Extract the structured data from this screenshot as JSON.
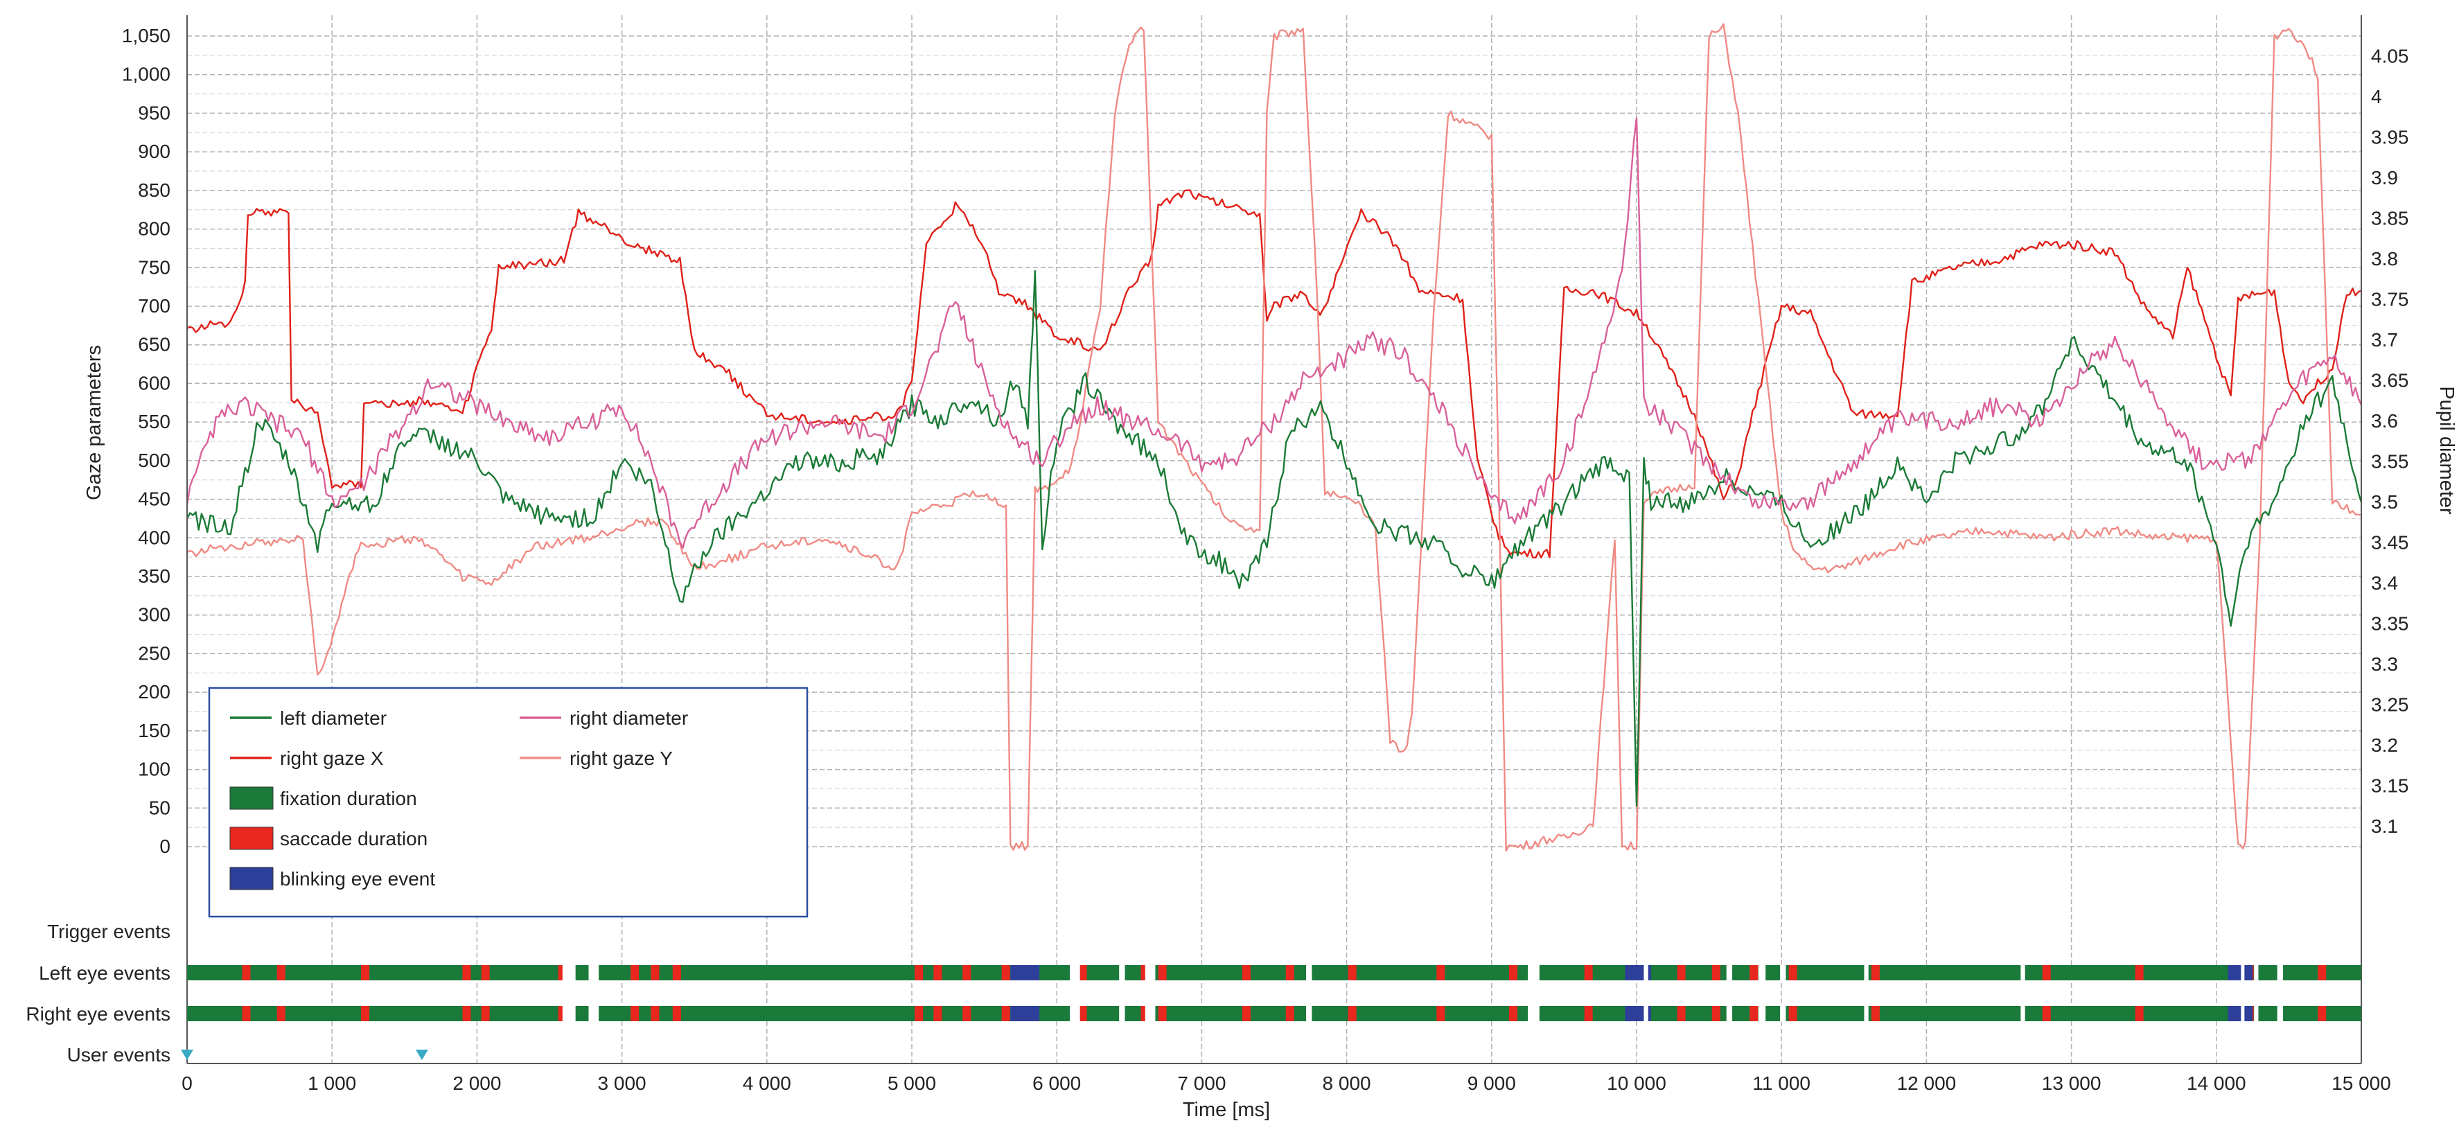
{
  "chart_data": {
    "type": "line",
    "xlabel": "Time [ms]",
    "ylabel_left": "Gaze parameters",
    "ylabel_right": "Pupil diameter",
    "xlim": [
      0,
      15000
    ],
    "ylim_left": [
      0,
      1050
    ],
    "ylim_right": [
      3.075,
      4.075
    ],
    "x_ticks": [
      "0",
      "1 000",
      "2 000",
      "3 000",
      "4 000",
      "5 000",
      "6 000",
      "7 000",
      "8 000",
      "9 000",
      "10 000",
      "11 000",
      "12 000",
      "13 000",
      "14 000",
      "15 000"
    ],
    "left_ticks": [
      "0",
      "50",
      "100",
      "150",
      "200",
      "250",
      "300",
      "350",
      "400",
      "450",
      "500",
      "550",
      "600",
      "650",
      "700",
      "750",
      "800",
      "850",
      "900",
      "950",
      "1,000",
      "1,050"
    ],
    "right_ticks": [
      "3.1",
      "3.15",
      "3.2",
      "3.25",
      "3.3",
      "3.35",
      "3.4",
      "3.45",
      "3.5",
      "3.55",
      "3.6",
      "3.65",
      "3.7",
      "3.75",
      "3.8",
      "3.85",
      "3.9",
      "3.95",
      "4",
      "4.05"
    ],
    "grid": true,
    "legend_position": "bottom-left",
    "colors": {
      "left_diameter": "#1a7a36",
      "right_diameter": "#d9609a",
      "right_gaze_x": "#e02018",
      "right_gaze_y": "#f08a84",
      "fixation": "#1a7a3a",
      "saccade": "#e8281e",
      "blink": "#2e3f9a",
      "user_marker": "#39a9c4",
      "legend_border": "#2b4fa0",
      "grid": "#b0b0b0"
    },
    "legend": [
      {
        "label": "left diameter",
        "kind": "line",
        "color_key": "left_diameter"
      },
      {
        "label": "right diameter",
        "kind": "line",
        "color_key": "right_diameter"
      },
      {
        "label": "right gaze X",
        "kind": "line",
        "color_key": "right_gaze_x"
      },
      {
        "label": "right gaze Y",
        "kind": "line",
        "color_key": "right_gaze_y"
      },
      {
        "label": "fixation duration",
        "kind": "box",
        "color_key": "fixation"
      },
      {
        "label": "saccade duration",
        "kind": "box",
        "color_key": "saccade"
      },
      {
        "label": "blinking eye event",
        "kind": "box",
        "color_key": "blink"
      }
    ],
    "series": [
      {
        "name": "right gaze X",
        "axis": "left",
        "color_key": "right_gaze_x",
        "x": [
          0,
          300,
          400,
          420,
          700,
          720,
          900,
          1000,
          1200,
          1220,
          1500,
          1600,
          1900,
          2000,
          2100,
          2150,
          2600,
          2700,
          3000,
          3050,
          3400,
          3500,
          3700,
          4000,
          4500,
          4900,
          5000,
          5100,
          5300,
          5500,
          5600,
          5800,
          5900,
          6000,
          6200,
          6300,
          6400,
          6500,
          6650,
          6700,
          6900,
          7000,
          7400,
          7450,
          7500,
          7700,
          7800,
          7850,
          8100,
          8300,
          8400,
          8500,
          8800,
          8900,
          9050,
          9150,
          9400,
          9500,
          9700,
          10000,
          10050,
          10400,
          10600,
          10700,
          10800,
          11000,
          11200,
          11500,
          11800,
          11900,
          12200,
          12500,
          12800,
          13000,
          13300,
          13500,
          13700,
          13800,
          14100,
          14150,
          14400,
          14500,
          14600,
          14800,
          14900,
          15000
        ],
        "y": [
          670,
          680,
          730,
          820,
          825,
          580,
          560,
          470,
          470,
          580,
          570,
          580,
          560,
          620,
          670,
          750,
          760,
          820,
          790,
          780,
          760,
          640,
          620,
          560,
          550,
          560,
          600,
          780,
          830,
          780,
          720,
          700,
          680,
          660,
          650,
          640,
          680,
          720,
          760,
          830,
          850,
          840,
          820,
          680,
          700,
          720,
          690,
          700,
          820,
          790,
          760,
          720,
          710,
          500,
          400,
          380,
          380,
          720,
          720,
          690,
          680,
          560,
          450,
          480,
          560,
          700,
          690,
          560,
          560,
          730,
          750,
          760,
          780,
          780,
          770,
          700,
          660,
          750,
          580,
          710,
          720,
          600,
          580,
          620,
          720,
          720
        ]
      },
      {
        "name": "right gaze Y",
        "axis": "left",
        "color_key": "right_gaze_y",
        "x": [
          0,
          300,
          800,
          900,
          950,
          1200,
          1250,
          1600,
          1900,
          2100,
          2400,
          2800,
          3100,
          3300,
          3500,
          3700,
          4000,
          4400,
          4900,
          5000,
          5500,
          5650,
          5680,
          5800,
          5850,
          5900,
          6100,
          6300,
          6400,
          6500,
          6600,
          6700,
          7000,
          7200,
          7400,
          7450,
          7500,
          7700,
          7800,
          7850,
          8100,
          8200,
          8300,
          8400,
          8450,
          8600,
          8700,
          9000,
          9100,
          9200,
          9400,
          9500,
          9700,
          9850,
          9900,
          10000,
          10050,
          10200,
          10400,
          10500,
          10600,
          10700,
          11000,
          11100,
          11200,
          11400,
          11800,
          12100,
          12400,
          12800,
          13300,
          13600,
          14000,
          14150,
          14200,
          14300,
          14400,
          14500,
          14600,
          14700,
          14800,
          15000
        ],
        "y": [
          380,
          390,
          400,
          220,
          240,
          400,
          390,
          400,
          350,
          340,
          390,
          400,
          420,
          420,
          360,
          370,
          390,
          400,
          360,
          430,
          460,
          440,
          0,
          0,
          460,
          460,
          490,
          700,
          950,
          1040,
          1060,
          550,
          470,
          420,
          410,
          950,
          1050,
          1060,
          700,
          460,
          440,
          410,
          140,
          120,
          170,
          690,
          950,
          920,
          0,
          0,
          10,
          10,
          30,
          400,
          0,
          0,
          450,
          460,
          470,
          1050,
          1060,
          950,
          430,
          380,
          360,
          360,
          390,
          400,
          410,
          400,
          410,
          400,
          400,
          0,
          0,
          400,
          1050,
          1060,
          1040,
          1000,
          450,
          430
        ]
      },
      {
        "name": "left diameter",
        "axis": "right",
        "color_key": "left_diameter",
        "x": [
          0,
          300,
          500,
          700,
          900,
          1000,
          1300,
          1500,
          1700,
          2000,
          2200,
          2500,
          2800,
          3000,
          3200,
          3400,
          3600,
          3900,
          4200,
          4500,
          4800,
          5000,
          5200,
          5400,
          5600,
          5700,
          5800,
          5850,
          5900,
          6000,
          6200,
          6400,
          6700,
          6900,
          7100,
          7300,
          7450,
          7600,
          7800,
          8000,
          8200,
          8400,
          8600,
          8800,
          9000,
          9200,
          9400,
          9600,
          9800,
          9950,
          10000,
          10050,
          10100,
          10400,
          10600,
          11000,
          11200,
          11400,
          11600,
          11800,
          12000,
          12200,
          12600,
          12800,
          13000,
          13200,
          13500,
          13800,
          14000,
          14100,
          14200,
          14400,
          14600,
          14800,
          15000
        ],
        "y": [
          3.48,
          3.47,
          3.6,
          3.55,
          3.45,
          3.5,
          3.5,
          3.58,
          3.58,
          3.55,
          3.5,
          3.48,
          3.48,
          3.55,
          3.52,
          3.38,
          3.45,
          3.5,
          3.55,
          3.55,
          3.56,
          3.62,
          3.6,
          3.63,
          3.6,
          3.65,
          3.6,
          3.78,
          3.45,
          3.58,
          3.65,
          3.6,
          3.55,
          3.45,
          3.43,
          3.4,
          3.45,
          3.58,
          3.62,
          3.55,
          3.47,
          3.46,
          3.45,
          3.42,
          3.4,
          3.45,
          3.48,
          3.52,
          3.55,
          3.53,
          3.12,
          3.55,
          3.5,
          3.5,
          3.53,
          3.5,
          3.45,
          3.47,
          3.5,
          3.55,
          3.5,
          3.55,
          3.58,
          3.62,
          3.7,
          3.65,
          3.57,
          3.55,
          3.45,
          3.35,
          3.45,
          3.5,
          3.6,
          3.65,
          3.5
        ]
      },
      {
        "name": "right diameter",
        "axis": "right",
        "color_key": "right_diameter",
        "x": [
          0,
          200,
          400,
          600,
          800,
          1000,
          1200,
          1500,
          1700,
          2000,
          2200,
          2500,
          2800,
          3000,
          3200,
          3400,
          3700,
          4000,
          4400,
          4800,
          5000,
          5200,
          5300,
          5500,
          5700,
          5900,
          6100,
          6300,
          6500,
          6800,
          7000,
          7200,
          7500,
          7700,
          8000,
          8200,
          8400,
          8700,
          9000,
          9200,
          9500,
          9700,
          9800,
          9900,
          10000,
          10050,
          10200,
          10500,
          10800,
          11200,
          11500,
          11800,
          12200,
          12500,
          12800,
          13000,
          13300,
          13600,
          13900,
          14200,
          14400,
          14600,
          14800,
          15000
        ],
        "y": [
          3.5,
          3.6,
          3.62,
          3.6,
          3.58,
          3.5,
          3.52,
          3.6,
          3.65,
          3.62,
          3.6,
          3.58,
          3.6,
          3.62,
          3.55,
          3.45,
          3.52,
          3.58,
          3.6,
          3.58,
          3.62,
          3.7,
          3.75,
          3.65,
          3.58,
          3.55,
          3.6,
          3.62,
          3.6,
          3.58,
          3.55,
          3.55,
          3.6,
          3.65,
          3.68,
          3.7,
          3.68,
          3.6,
          3.5,
          3.48,
          3.55,
          3.65,
          3.72,
          3.78,
          3.98,
          3.62,
          3.6,
          3.55,
          3.5,
          3.5,
          3.55,
          3.6,
          3.6,
          3.62,
          3.6,
          3.65,
          3.7,
          3.62,
          3.55,
          3.55,
          3.6,
          3.65,
          3.68,
          3.62
        ]
      }
    ],
    "events": {
      "row_labels": [
        "Trigger events",
        "Left eye events",
        "Right eye events",
        "User events"
      ],
      "saccades": [
        380,
        620,
        1200,
        1900,
        2030,
        2560,
        3060,
        3200,
        3350,
        5020,
        5150,
        5350,
        5620,
        6150,
        6580,
        6700,
        7280,
        7580,
        8010,
        8620,
        9120,
        9640,
        9990,
        10280,
        10520,
        10780,
        11050,
        11620,
        12800,
        13440,
        14200,
        14700
      ],
      "gaps": [
        [
          2590,
          2680
        ],
        [
          2770,
          2840
        ],
        [
          6090,
          6160
        ],
        [
          6430,
          6470
        ],
        [
          6610,
          6680
        ],
        [
          7720,
          7760
        ],
        [
          9250,
          9330
        ],
        [
          10050,
          10080
        ],
        [
          10620,
          10660
        ],
        [
          10840,
          10890
        ],
        [
          10990,
          11030
        ],
        [
          11570,
          11600
        ],
        [
          12650,
          12680
        ],
        [
          14170,
          14190
        ],
        [
          14260,
          14290
        ],
        [
          14420,
          14460
        ]
      ],
      "blinks": [
        [
          5680,
          5880
        ],
        [
          9920,
          10100
        ],
        [
          14080,
          14250
        ]
      ],
      "user_markers": [
        0,
        1620
      ]
    }
  }
}
